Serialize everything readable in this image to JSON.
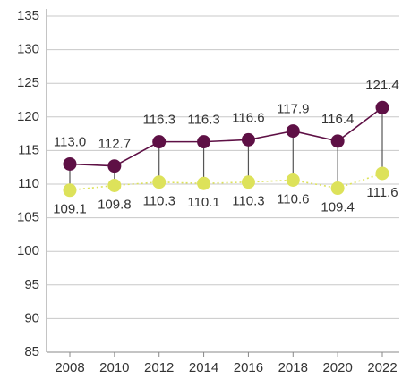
{
  "chart_data": {
    "type": "line",
    "categories": [
      "2008",
      "2010",
      "2012",
      "2014",
      "2016",
      "2018",
      "2020",
      "2022"
    ],
    "series": [
      {
        "color": "#5e1045",
        "line_style": "solid",
        "values": [
          113.0,
          112.7,
          116.3,
          116.3,
          116.6,
          117.9,
          116.4,
          121.4
        ],
        "value_labels": [
          "113.0",
          "112.7",
          "116.3",
          "116.3",
          "116.6",
          "117.9",
          "116.4",
          "121.4"
        ],
        "label_position": "above"
      },
      {
        "color": "#dde25a",
        "line_style": "dotted",
        "values": [
          109.1,
          109.8,
          110.3,
          110.1,
          110.3,
          110.6,
          109.4,
          111.6
        ],
        "value_labels": [
          "109.1",
          "109.8",
          "110.3",
          "110.1",
          "110.3",
          "110.6",
          "109.4",
          "111.6"
        ],
        "label_position": "below"
      }
    ],
    "ylim": [
      85,
      135
    ],
    "yticks": [
      85,
      90,
      95,
      100,
      105,
      110,
      115,
      120,
      125,
      130,
      135
    ],
    "grid": true
  }
}
